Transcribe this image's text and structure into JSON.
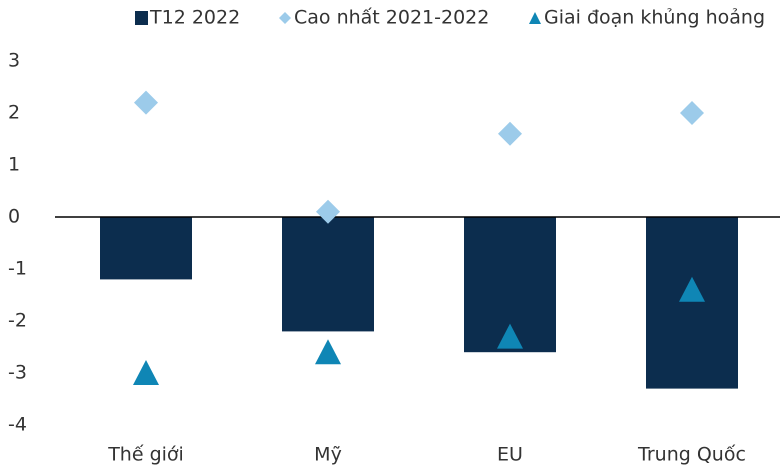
{
  "chart_data": {
    "type": "bar",
    "categories": [
      "Thế giới",
      "Mỹ",
      "EU",
      "Trung Quốc"
    ],
    "series": [
      {
        "name": "T12 2022",
        "marker": "bar",
        "color": "#0c2d4e",
        "values": [
          -1.2,
          -2.2,
          -2.6,
          -3.3
        ]
      },
      {
        "name": "Cao nhất 2021-2022",
        "marker": "diamond",
        "color": "#9ccbea",
        "values": [
          2.2,
          0.1,
          1.6,
          2.0
        ]
      },
      {
        "name": "Giai đoạn khủng hoảng",
        "marker": "triangle",
        "color": "#0f86b5",
        "values": [
          -3.0,
          -2.6,
          -2.3,
          -1.4
        ]
      }
    ],
    "ylim": [
      -4,
      3
    ],
    "yticks": [
      -4,
      -3,
      -2,
      -1,
      0,
      1,
      2,
      3
    ],
    "grid": false,
    "legend": "top"
  }
}
